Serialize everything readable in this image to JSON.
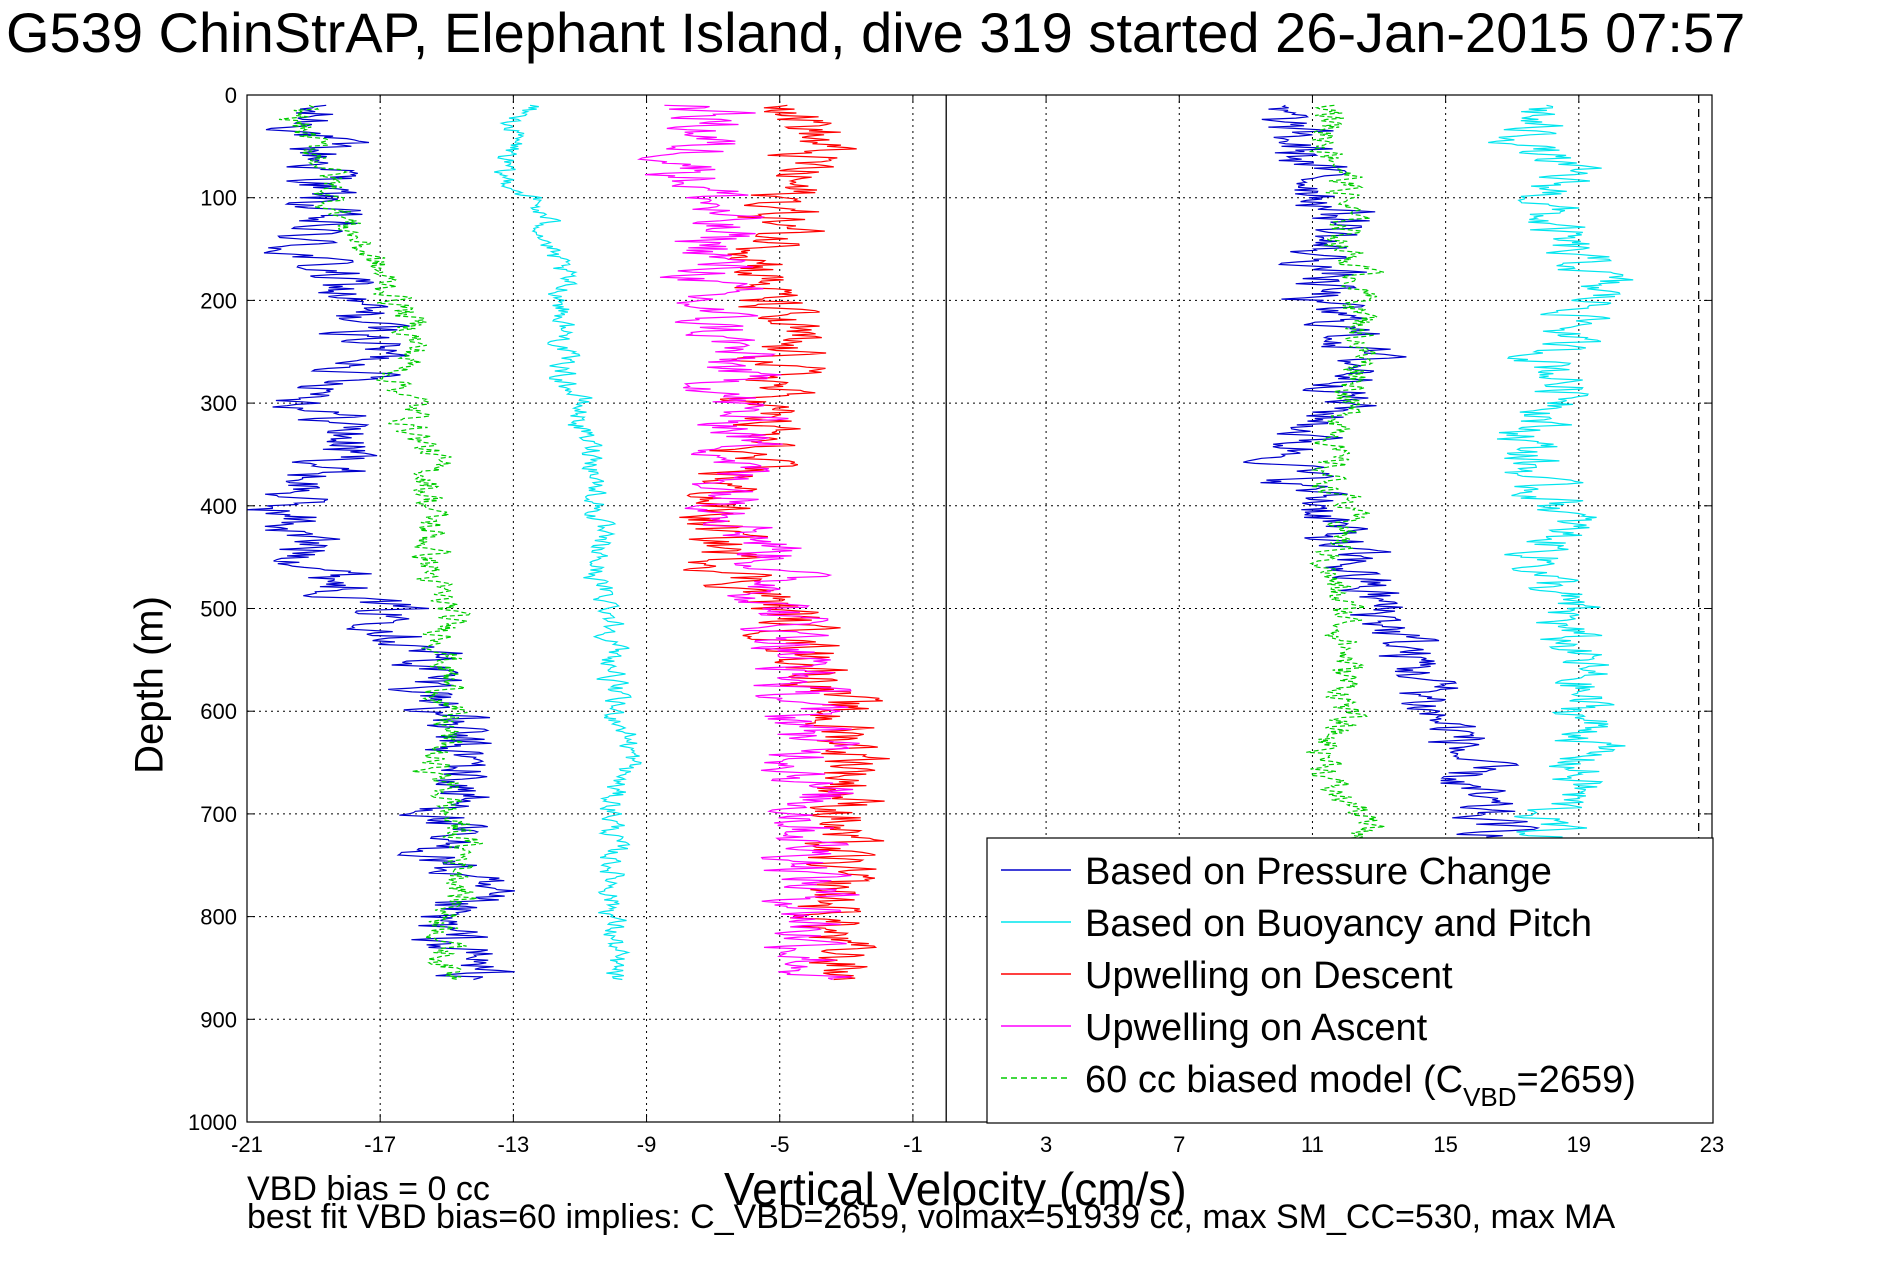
{
  "chart_data": {
    "type": "line",
    "title": "G539 ChinStrAP, Elephant Island, dive 319 started 26-Jan-2015 07:57",
    "xlabel": "Vertical Velocity (cm/s)",
    "ylabel": "Depth (m)",
    "xlim": [
      -21,
      23
    ],
    "ylim": [
      1000,
      0
    ],
    "y_reversed": true,
    "grid": true,
    "x_ticks": [
      "-21",
      "-17",
      "-13",
      "-9",
      "-5",
      "-1",
      "3",
      "7",
      "11",
      "15",
      "19",
      "23"
    ],
    "y_ticks": [
      "0",
      "100",
      "200",
      "300",
      "400",
      "500",
      "600",
      "700",
      "800",
      "900",
      "1000"
    ],
    "reference_lines": [
      {
        "style": "solid",
        "color": "#000000",
        "x": 0
      },
      {
        "style": "dashed",
        "color": "#000000",
        "x": 22.6
      }
    ],
    "legend": {
      "placement": "lower-right",
      "entries": [
        {
          "label": "Based on Pressure Change",
          "color": "#0000cc",
          "style": "solid"
        },
        {
          "label": "Based on Buoyancy and Pitch",
          "color": "#00e5ee",
          "style": "solid"
        },
        {
          "label": "Upwelling on Descent",
          "color": "#ff0000",
          "style": "solid"
        },
        {
          "label": "Upwelling on Ascent",
          "color": "#ff00ff",
          "style": "solid"
        },
        {
          "label_prefix": "60 cc biased model (C",
          "label_sub": "VBD",
          "label_suffix": "=2659)",
          "color": "#00cc00",
          "style": "dashed"
        }
      ]
    },
    "series": [
      {
        "name": "Based on Pressure Change (descent)",
        "color": "#0000cc",
        "style": "solid",
        "depth": [
          10,
          25,
          50,
          75,
          100,
          125,
          150,
          175,
          200,
          225,
          250,
          275,
          300,
          325,
          350,
          375,
          400,
          425,
          450,
          475,
          500,
          525,
          550,
          575,
          600,
          625,
          650,
          675,
          700,
          725,
          750,
          775,
          800,
          825,
          850,
          862
        ],
        "values": [
          -19.5,
          -19,
          -19,
          -18.5,
          -19,
          -19,
          -19.5,
          -18.5,
          -18,
          -17.5,
          -17,
          -17.5,
          -19,
          -18,
          -18,
          -19,
          -20,
          -19.5,
          -19,
          -18,
          -17,
          -16,
          -15.5,
          -15.5,
          -15,
          -15,
          -14.5,
          -14.5,
          -15,
          -15.5,
          -15,
          -14.5,
          -15.5,
          -15,
          -14,
          -14
        ],
        "jitter": 1.1
      },
      {
        "name": "Based on Buoyancy and Pitch (descent)",
        "color": "#00e5ee",
        "style": "solid",
        "depth": [
          10,
          25,
          50,
          75,
          100,
          125,
          150,
          175,
          200,
          225,
          250,
          275,
          300,
          325,
          350,
          375,
          400,
          425,
          450,
          475,
          500,
          525,
          550,
          575,
          600,
          625,
          650,
          675,
          700,
          725,
          750,
          775,
          800,
          825,
          850,
          862
        ],
        "values": [
          -12.5,
          -13,
          -13,
          -13.5,
          -12.5,
          -12,
          -12,
          -11.5,
          -11.5,
          -11.5,
          -11.5,
          -11.5,
          -11,
          -11,
          -10.5,
          -10.5,
          -10.5,
          -10.5,
          -10.5,
          -10.5,
          -10,
          -10,
          -10,
          -10,
          -10,
          -9.5,
          -9.5,
          -10,
          -10,
          -10,
          -10,
          -10,
          -10,
          -10,
          -10,
          -10
        ],
        "jitter": 0.35
      },
      {
        "name": "60 cc biased model (descent)",
        "color": "#00cc00",
        "style": "dashed",
        "depth": [
          10,
          25,
          50,
          75,
          100,
          125,
          150,
          175,
          200,
          225,
          250,
          275,
          300,
          325,
          350,
          375,
          400,
          425,
          450,
          475,
          500,
          525,
          550,
          575,
          600,
          625,
          650,
          675,
          700,
          725,
          750,
          775,
          800,
          825,
          850,
          862
        ],
        "values": [
          -19.5,
          -19.5,
          -19,
          -18.5,
          -18.5,
          -18,
          -17.5,
          -17,
          -16.5,
          -16,
          -16,
          -16.5,
          -16,
          -16,
          -15.5,
          -15.5,
          -15.5,
          -15.5,
          -15.5,
          -15.5,
          -15,
          -15,
          -15,
          -15,
          -15,
          -15,
          -15.5,
          -15,
          -15,
          -14.5,
          -14.5,
          -14.5,
          -15,
          -15,
          -15,
          -14.5
        ],
        "jitter": 0.5
      },
      {
        "name": "Upwelling on Descent",
        "color": "#ff0000",
        "style": "solid",
        "depth": [
          10,
          25,
          50,
          75,
          100,
          125,
          150,
          175,
          200,
          225,
          250,
          275,
          300,
          325,
          350,
          375,
          400,
          425,
          450,
          475,
          500,
          525,
          550,
          575,
          600,
          625,
          650,
          675,
          700,
          725,
          750,
          775,
          800,
          825,
          850,
          862
        ],
        "values": [
          -4,
          -4,
          -4,
          -4.5,
          -5,
          -5,
          -5,
          -5.5,
          -5.5,
          -5,
          -5,
          -5,
          -5.5,
          -5.5,
          -6,
          -6.5,
          -7,
          -7,
          -6.5,
          -6,
          -5,
          -4.5,
          -4,
          -3.5,
          -3.5,
          -3,
          -2.5,
          -3,
          -3,
          -3.5,
          -3.5,
          -3.5,
          -3.5,
          -3.5,
          -3,
          -3
        ],
        "jitter": 1.1
      },
      {
        "name": "Upwelling on Ascent",
        "color": "#ff00ff",
        "style": "solid",
        "depth": [
          10,
          25,
          50,
          75,
          100,
          125,
          150,
          175,
          200,
          225,
          250,
          275,
          300,
          325,
          350,
          375,
          400,
          425,
          450,
          475,
          500,
          525,
          550,
          575,
          600,
          625,
          650,
          675,
          700,
          725,
          750,
          775,
          800,
          825,
          850,
          862
        ],
        "values": [
          -7.5,
          -7,
          -7.5,
          -7.5,
          -7,
          -7,
          -7,
          -7,
          -7.5,
          -7,
          -6.5,
          -6.5,
          -6.5,
          -6,
          -6,
          -6.5,
          -6,
          -5.5,
          -5,
          -5,
          -5,
          -4.5,
          -4.5,
          -4.5,
          -4.5,
          -4,
          -4,
          -4,
          -4,
          -4,
          -4,
          -4,
          -4,
          -4,
          -4,
          -4
        ],
        "jitter": 1.2
      },
      {
        "name": "Based on Pressure Change (ascent)",
        "color": "#0000cc",
        "style": "solid",
        "depth": [
          862,
          850,
          825,
          800,
          775,
          750,
          725,
          700,
          675,
          650,
          625,
          600,
          575,
          550,
          525,
          500,
          475,
          450,
          425,
          400,
          375,
          350,
          325,
          300,
          275,
          250,
          225,
          200,
          175,
          150,
          125,
          100,
          75,
          50,
          25,
          10
        ],
        "values": [
          17,
          17,
          17,
          17,
          17,
          17,
          17,
          16,
          15.5,
          15.5,
          15.5,
          14.5,
          14.5,
          14,
          13.5,
          13,
          12.5,
          12,
          11.5,
          11.5,
          10.5,
          10.5,
          11,
          12,
          12.5,
          12.5,
          12,
          11,
          11.5,
          11,
          12,
          11.5,
          11,
          10.5,
          10,
          9.5
        ],
        "jitter": 1.0
      },
      {
        "name": "Based on Buoyancy and Pitch (ascent)",
        "color": "#00e5ee",
        "style": "solid",
        "depth": [
          862,
          850,
          825,
          800,
          775,
          750,
          725,
          700,
          675,
          650,
          625,
          600,
          575,
          550,
          525,
          500,
          475,
          450,
          425,
          400,
          375,
          350,
          325,
          300,
          275,
          250,
          225,
          200,
          175,
          150,
          125,
          100,
          75,
          50,
          25,
          10
        ],
        "values": [
          18,
          18,
          18,
          18,
          18,
          18,
          18,
          18,
          19,
          19,
          19.5,
          19,
          19,
          19,
          18.5,
          18.5,
          18,
          18,
          18.5,
          18.5,
          17.5,
          17.5,
          17.5,
          19,
          18.5,
          18,
          19,
          19.5,
          19.5,
          18.5,
          18,
          18,
          18.5,
          17.5,
          17.5,
          18
        ],
        "jitter": 0.9
      },
      {
        "name": "60 cc biased model (ascent)",
        "color": "#00cc00",
        "style": "dashed",
        "depth": [
          862,
          850,
          825,
          800,
          775,
          750,
          725,
          700,
          675,
          650,
          625,
          600,
          575,
          550,
          525,
          500,
          475,
          450,
          425,
          400,
          375,
          350,
          325,
          300,
          275,
          250,
          225,
          200,
          175,
          150,
          125,
          100,
          75,
          50,
          25,
          10
        ],
        "values": [
          12.5,
          12.5,
          12.5,
          12.5,
          12.5,
          12.5,
          12.5,
          12.5,
          11.5,
          11.5,
          11.5,
          12,
          12,
          12,
          12,
          12,
          11.5,
          11.5,
          12,
          12,
          11.5,
          11.5,
          12,
          12,
          12.5,
          12.5,
          12.5,
          12.5,
          12.5,
          12,
          12,
          12,
          12,
          11.5,
          11.5,
          12
        ],
        "jitter": 0.5
      }
    ],
    "annotations": [
      "VBD bias = 0 cc",
      "best fit VBD bias=60 implies: C_VBD=2659, volmax=51939 cc, max SM_CC=530, max MA"
    ]
  }
}
